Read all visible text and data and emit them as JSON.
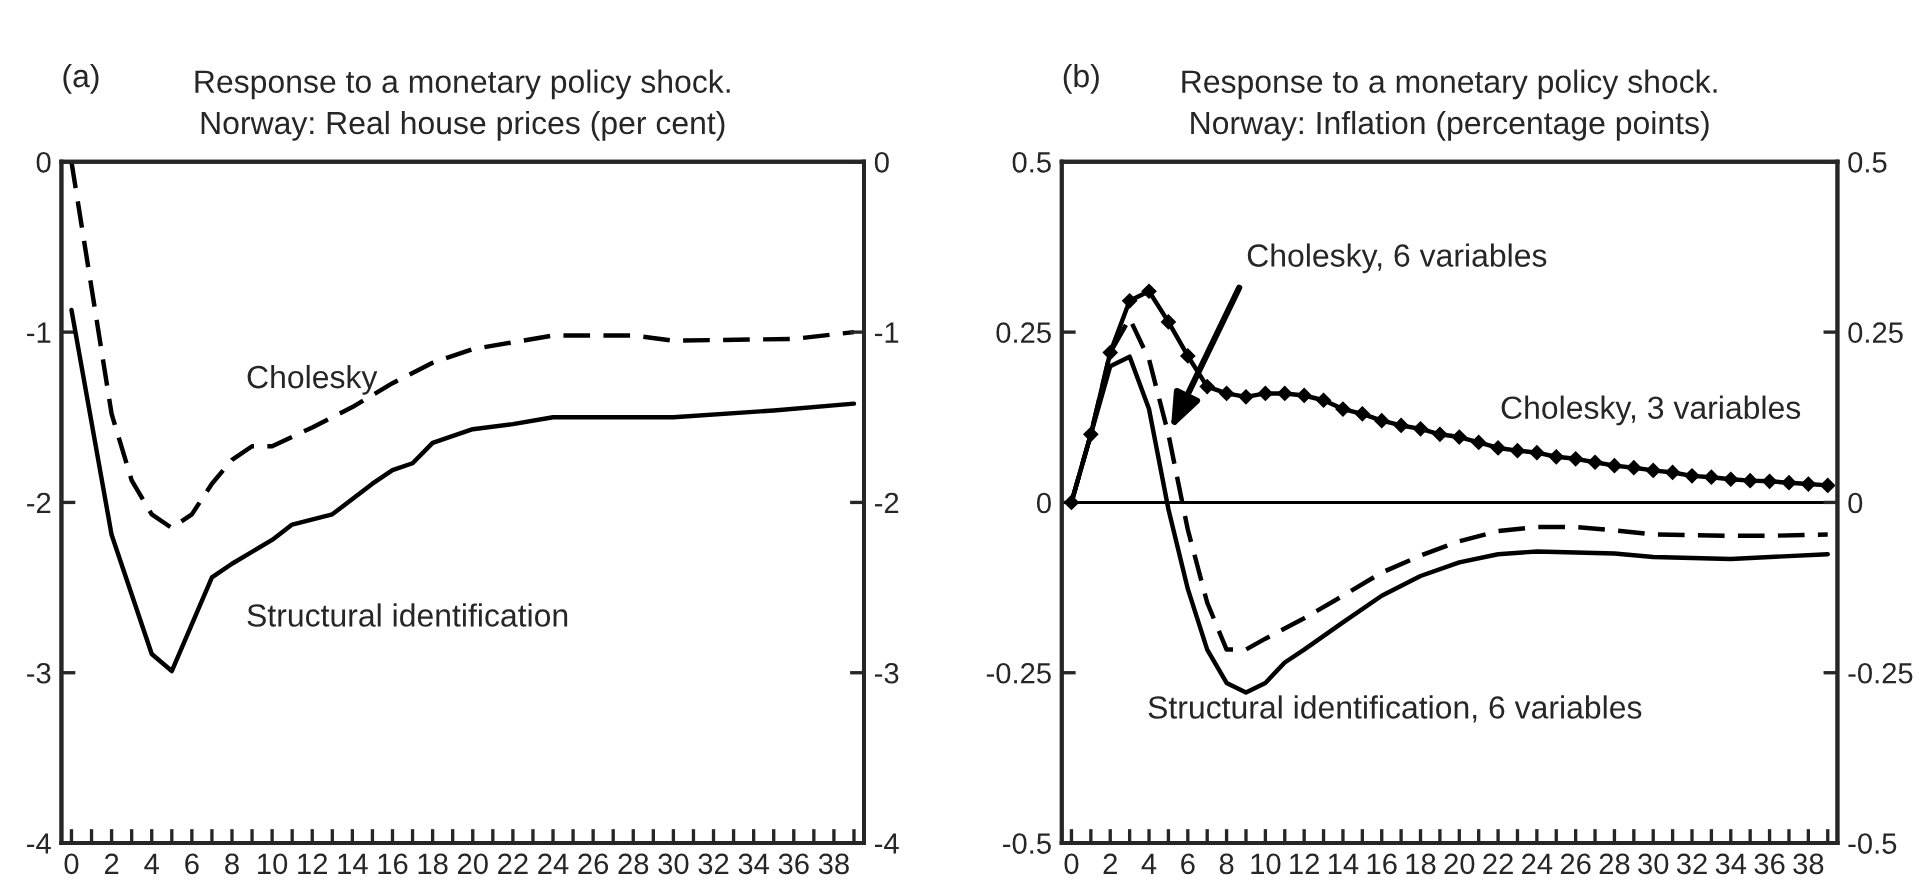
{
  "chart_data": [
    {
      "type": "line",
      "title": "Response to a monetary policy shock.\nNorway: Real house prices (per cent)",
      "annotations": [
        "(a)"
      ],
      "series": [
        {
          "name": "Cholesky",
          "color": "#000000",
          "line_style": "dashed",
          "x": [
            0,
            2,
            3,
            4,
            5,
            6,
            7,
            8,
            9,
            10,
            12,
            14,
            16,
            18,
            20,
            22,
            24,
            28,
            30,
            36,
            39
          ],
          "values": [
            0,
            -1.48,
            -1.87,
            -2.07,
            -2.15,
            -2.07,
            -1.89,
            -1.75,
            -1.67,
            -1.67,
            -1.56,
            -1.44,
            -1.3,
            -1.18,
            -1.1,
            -1.06,
            -1.02,
            -1.02,
            -1.05,
            -1.04,
            -1.0
          ]
        },
        {
          "name": "Structural identification",
          "color": "#000000",
          "line_style": "solid",
          "x": [
            0,
            2,
            4,
            5,
            7,
            8,
            10,
            11,
            13,
            15,
            16,
            17,
            18,
            20,
            22,
            24,
            30,
            35,
            39
          ],
          "values": [
            -0.87,
            -2.19,
            -2.89,
            -2.99,
            -2.44,
            -2.36,
            -2.22,
            -2.13,
            -2.07,
            -1.89,
            -1.81,
            -1.77,
            -1.65,
            -1.57,
            -1.54,
            -1.5,
            -1.5,
            -1.46,
            -1.42
          ]
        }
      ],
      "xlim": [
        -0.5,
        39.5
      ],
      "xticks": [
        0,
        {
          "value": 1,
          "label": null
        },
        2,
        {
          "value": 3,
          "label": null
        },
        4,
        {
          "value": 5,
          "label": null
        },
        6,
        {
          "value": 7,
          "label": null
        },
        8,
        {
          "value": 9,
          "label": null
        },
        10,
        {
          "value": 11,
          "label": null
        },
        12,
        {
          "value": 13,
          "label": null
        },
        14,
        {
          "value": 15,
          "label": null
        },
        16,
        {
          "value": 17,
          "label": null
        },
        18,
        {
          "value": 19,
          "label": null
        },
        20,
        {
          "value": 21,
          "label": null
        },
        22,
        {
          "value": 23,
          "label": null
        },
        24,
        {
          "value": 25,
          "label": null
        },
        26,
        {
          "value": 27,
          "label": null
        },
        28,
        {
          "value": 29,
          "label": null
        },
        30,
        {
          "value": 31,
          "label": null
        },
        32,
        {
          "value": 33,
          "label": null
        },
        34,
        {
          "value": 35,
          "label": null
        },
        36,
        {
          "value": 37,
          "label": null
        },
        38,
        {
          "value": 39,
          "label": null
        }
      ],
      "ylim": [
        -4,
        0
      ],
      "yticks": [
        -4,
        -3,
        -2,
        -1,
        0
      ],
      "y2lim": [
        -4,
        0
      ],
      "y2ticks": [
        -4,
        -3,
        -2,
        -1,
        0
      ],
      "grid": false,
      "legend": false
    },
    {
      "type": "line",
      "title": "Response to a monetary policy shock.\nNorway: Inflation (percentage points)",
      "annotations": [
        "(b)",
        {
          "text": "Cholesky, 6 variables",
          "x": 5,
          "y": 0.1
        }
      ],
      "ref_lines": [
        {
          "axis": "y",
          "value": 0,
          "color": "#000000"
        }
      ],
      "series": [
        {
          "name": "Cholesky, 3 variables",
          "color": "#000000",
          "line_style": "solid",
          "marker": "diamond",
          "x": [
            0,
            1,
            2,
            3,
            4,
            5,
            6,
            7,
            8,
            9,
            10,
            11,
            12,
            13,
            14,
            15,
            16,
            17,
            18,
            19,
            20,
            21,
            22,
            23,
            24,
            25,
            26,
            27,
            28,
            29,
            30,
            31,
            32,
            33,
            34,
            35,
            36,
            37,
            38,
            39
          ],
          "values": [
            0,
            0.1,
            0.22,
            0.296,
            0.31,
            0.265,
            0.215,
            0.17,
            0.16,
            0.155,
            0.16,
            0.16,
            0.157,
            0.15,
            0.137,
            0.13,
            0.12,
            0.113,
            0.108,
            0.1,
            0.096,
            0.088,
            0.08,
            0.076,
            0.073,
            0.067,
            0.064,
            0.059,
            0.054,
            0.051,
            0.047,
            0.044,
            0.039,
            0.037,
            0.034,
            0.032,
            0.031,
            0.029,
            0.027,
            0.025
          ]
        },
        {
          "color": "#000000",
          "line_style": "dashed",
          "x": [
            0,
            1,
            2,
            3,
            4,
            5,
            6,
            7,
            8,
            9,
            10,
            12,
            14,
            16,
            18,
            20,
            22,
            24,
            26,
            28,
            30,
            34,
            36,
            39
          ],
          "values": [
            0,
            0.1,
            0.22,
            0.27,
            0.21,
            0.1,
            -0.04,
            -0.147,
            -0.216,
            -0.216,
            -0.2,
            -0.17,
            -0.137,
            -0.103,
            -0.078,
            -0.057,
            -0.042,
            -0.036,
            -0.036,
            -0.041,
            -0.047,
            -0.049,
            -0.049,
            -0.047
          ]
        },
        {
          "name": "Structural identification, 6 variables",
          "color": "#000000",
          "line_style": "solid",
          "x": [
            0,
            1,
            2,
            3,
            4,
            5,
            6,
            7,
            8,
            9,
            10,
            11,
            12,
            14,
            16,
            18,
            20,
            22,
            24,
            28,
            30,
            34,
            39
          ],
          "values": [
            0,
            0.1,
            0.2,
            0.214,
            0.137,
            -0.01,
            -0.127,
            -0.216,
            -0.265,
            -0.279,
            -0.265,
            -0.235,
            -0.216,
            -0.176,
            -0.137,
            -0.108,
            -0.088,
            -0.076,
            -0.072,
            -0.075,
            -0.08,
            -0.083,
            -0.076
          ]
        }
      ],
      "xlim": [
        -0.5,
        39.5
      ],
      "xticks": [
        0,
        {
          "value": 1,
          "label": null
        },
        2,
        {
          "value": 3,
          "label": null
        },
        4,
        {
          "value": 5,
          "label": null
        },
        6,
        {
          "value": 7,
          "label": null
        },
        8,
        {
          "value": 9,
          "label": null
        },
        10,
        {
          "value": 11,
          "label": null
        },
        12,
        {
          "value": 13,
          "label": null
        },
        14,
        {
          "value": 15,
          "label": null
        },
        16,
        {
          "value": 17,
          "label": null
        },
        18,
        {
          "value": 19,
          "label": null
        },
        20,
        {
          "value": 21,
          "label": null
        },
        22,
        {
          "value": 23,
          "label": null
        },
        24,
        {
          "value": 25,
          "label": null
        },
        26,
        {
          "value": 27,
          "label": null
        },
        28,
        {
          "value": 29,
          "label": null
        },
        30,
        {
          "value": 31,
          "label": null
        },
        32,
        {
          "value": 33,
          "label": null
        },
        34,
        {
          "value": 35,
          "label": null
        },
        36,
        {
          "value": 37,
          "label": null
        },
        38,
        {
          "value": 39,
          "label": null
        }
      ],
      "ylim": [
        -0.5,
        0.5
      ],
      "yticks": [
        -0.5,
        -0.25,
        0,
        0.25,
        0.5
      ],
      "y2lim": [
        -0.5,
        0.5
      ],
      "y2ticks": [
        -0.5,
        -0.25,
        0,
        0.25,
        0.5
      ],
      "grid": false,
      "legend": false
    }
  ]
}
